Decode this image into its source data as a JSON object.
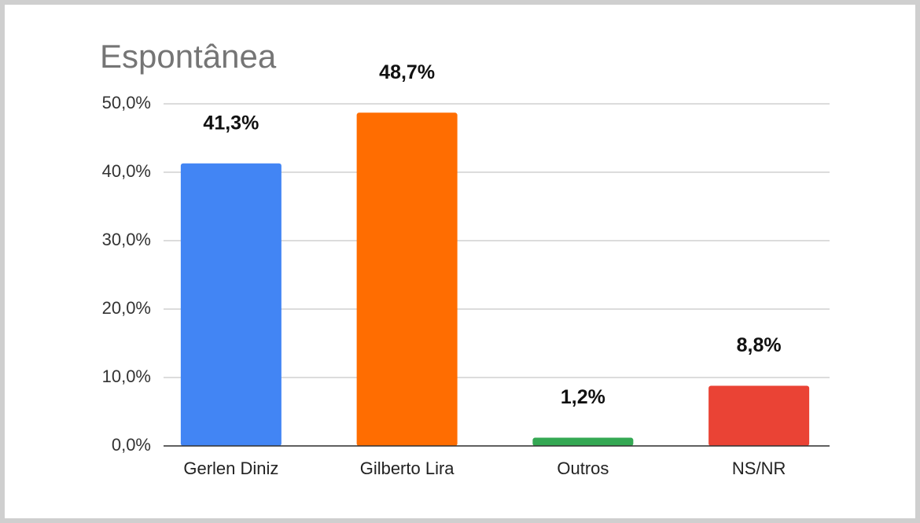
{
  "chart_data": {
    "type": "bar",
    "title": "Espontânea",
    "categories": [
      "Gerlen Diniz",
      "Gilberto Lira",
      "Outros",
      "NS/NR"
    ],
    "values": [
      41.3,
      48.7,
      1.2,
      8.8
    ],
    "value_labels": [
      "41,3%",
      "48,7%",
      "1,2%",
      "8,8%"
    ],
    "colors": [
      "#4285f4",
      "#ff6d01",
      "#34a853",
      "#ea4335"
    ],
    "ylim": [
      0,
      50
    ],
    "yticks": [
      {
        "value": 0,
        "label": "0,0%"
      },
      {
        "value": 10,
        "label": "10,0%"
      },
      {
        "value": 20,
        "label": "20,0%"
      },
      {
        "value": 30,
        "label": "30,0%"
      },
      {
        "value": 40,
        "label": "40,0%"
      },
      {
        "value": 50,
        "label": "50,0%"
      }
    ],
    "grid": true
  }
}
